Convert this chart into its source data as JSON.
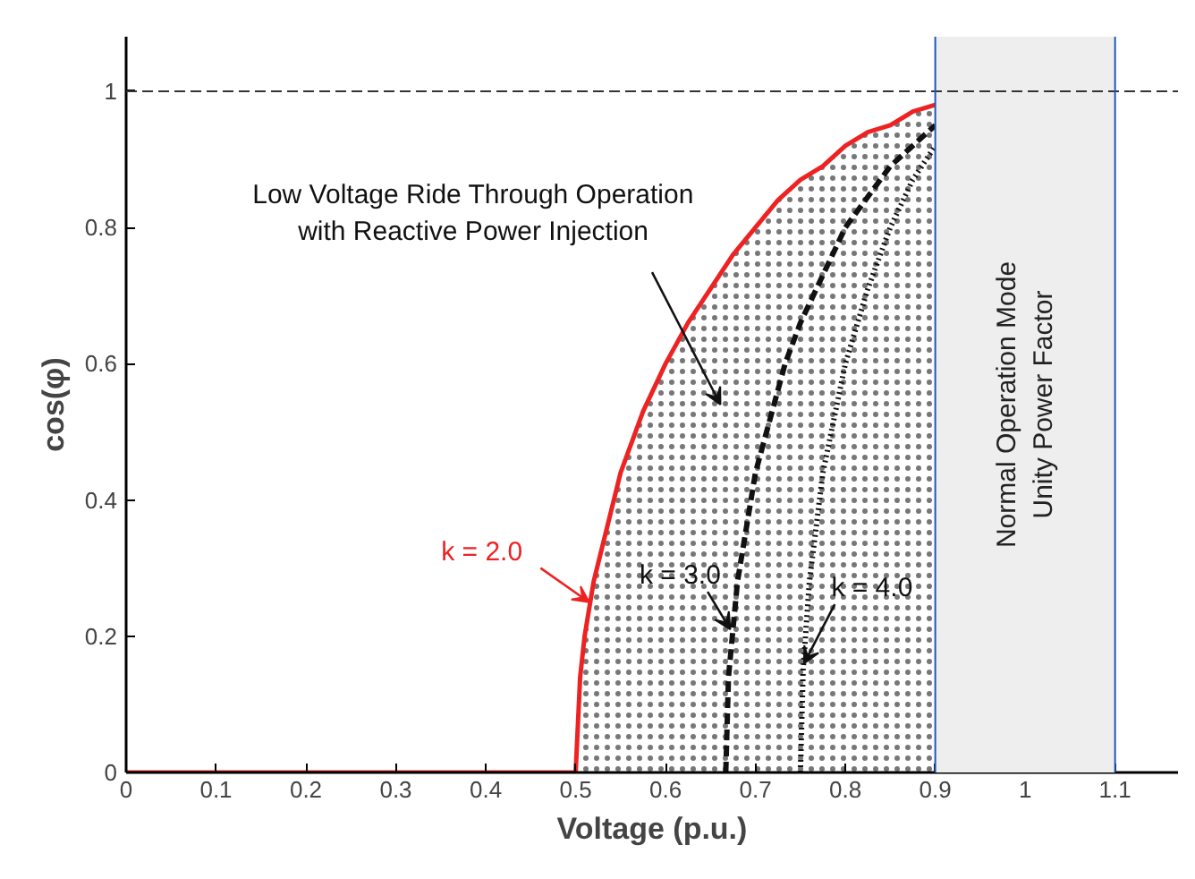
{
  "chart_data": {
    "type": "line",
    "xlabel": "Voltage (p.u.)",
    "ylabel": "cos(φ)",
    "xlim": [
      0,
      1.17
    ],
    "ylim": [
      0,
      1.08
    ],
    "xticks": [
      0,
      0.1,
      0.2,
      0.3,
      0.4,
      0.5,
      0.6,
      0.7,
      0.8,
      0.9,
      1,
      1.1
    ],
    "yticks": [
      0,
      0.2,
      0.4,
      0.6,
      0.8,
      1
    ],
    "grid": false,
    "series": [
      {
        "type": "area",
        "color": "#ee2222",
        "x": [
          0,
          0.5,
          0.505,
          0.51,
          0.52,
          0.55,
          0.575,
          0.6,
          0.625,
          0.65,
          0.675,
          0.7,
          0.725,
          0.75,
          0.775,
          0.8,
          0.825,
          0.85,
          0.875,
          0.9
        ],
        "values": [
          0,
          0,
          0.14,
          0.2,
          0.28,
          0.44,
          0.53,
          0.6,
          0.66,
          0.71,
          0.76,
          0.8,
          0.84,
          0.87,
          0.89,
          0.92,
          0.94,
          0.95,
          0.97,
          0.98
        ]
      },
      {
        "color": "#111111",
        "line_style": "dashed",
        "x": [
          0.667,
          0.67,
          0.68,
          0.7,
          0.733,
          0.75,
          0.8,
          0.85,
          0.9
        ],
        "values": [
          0,
          0.14,
          0.28,
          0.44,
          0.6,
          0.66,
          0.8,
          0.89,
          0.95
        ]
      },
      {
        "color": "#111111",
        "line_style": "dotted",
        "x": [
          0.75,
          0.753,
          0.76,
          0.775,
          0.8,
          0.825,
          0.85,
          0.875,
          0.9
        ],
        "values": [
          0,
          0.15,
          0.28,
          0.44,
          0.6,
          0.71,
          0.8,
          0.87,
          0.92
        ]
      }
    ],
    "ref_lines": [
      {
        "axis": "y",
        "value": 1,
        "color": "#333333",
        "line_style": "dashed"
      },
      {
        "axis": "x",
        "value": 0.9,
        "color": "#2255bb"
      },
      {
        "axis": "x",
        "value": 1.1,
        "color": "#2255bb"
      }
    ],
    "bands": [
      {
        "axis": "x",
        "from": 0.9,
        "to": 1.1,
        "color": "#eeeeee",
        "label": "Normal Operation Mode\nUnity Power Factor"
      }
    ],
    "annotations": [
      "Low Voltage Ride Through Operation\nwith Reactive Power Injection",
      {
        "text": "k = 2.0",
        "x": 0.515,
        "y": 0.25
      },
      {
        "text": "k = 3.0",
        "x": 0.672,
        "y": 0.21
      },
      {
        "text": "k = 4.0",
        "x": 0.754,
        "y": 0.16
      }
    ]
  }
}
